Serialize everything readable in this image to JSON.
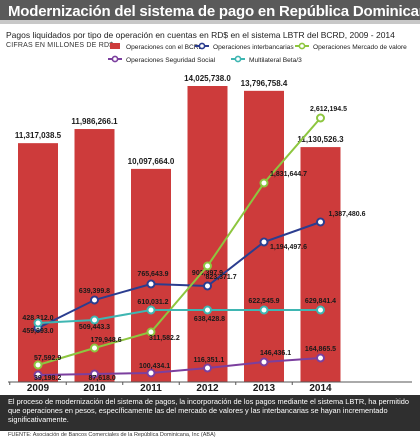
{
  "header": {
    "title": "Modernización del sistema de pago en República Dominicana",
    "subtitle": "Pagos liquidados por tipo de operación en cuentas en RD$ en el sistema LBTR del BCRD, 2009 - 2014",
    "units": "CIFRAS EN MILLONES DE RD$"
  },
  "note": "El proceso de modernización del sistema de pagos, la incorporación de los pagos mediante el sistema LBTR, ha permitido que operaciones en pesos, específicamente las del mercado de valores y las interbancarias se hayan incrementado significativamente.",
  "source": "FUENTE: Asociación de Bancos Comerciales de la República Dominicana, Inc (ABA)",
  "chart_data": {
    "type": "bar",
    "categories": [
      "2009",
      "2010",
      "2011",
      "2012",
      "2013",
      "2014"
    ],
    "ylim": [
      0,
      14500000
    ],
    "bar_series": {
      "name": "Operaciones con el BCRD",
      "values": [
        11317038.5,
        11986266.1,
        10097664.0,
        14025738.0,
        13796758.4,
        11130526.3
      ],
      "labels": [
        "11,317,038.5",
        "11,986,266.1",
        "10,097,664.0",
        "14,025,738.0",
        "13,796,758.4",
        "11,130,526.3"
      ],
      "color": "#cd3b3b"
    },
    "line_series": [
      {
        "name": "Operaciones interbancarias",
        "values": [
          428312.0,
          639399.8,
          765643.9,
          903397.9,
          1194497.6,
          1387480.6
        ],
        "labels": [
          "428,312.0",
          "639,399.8",
          "765,643.9",
          "903,397.9",
          "1,194,497.6",
          "1,387,480.6"
        ],
        "color": "#2b3d8f"
      },
      {
        "name": "Operaciones Mercado de valore",
        "values": [
          57592.9,
          179948.6,
          311582.2,
          823371.7,
          1831644.7,
          2612194.5
        ],
        "labels": [
          "57,592.9",
          "179,948.6",
          "311,582.2",
          "823,371.7",
          "1,831,644.7",
          "2,612,194.5"
        ],
        "color": "#8dc63f"
      },
      {
        "name": "Operaciones Seguridad Social",
        "values": [
          39198.2,
          87618.0,
          100434.1,
          116351.1,
          146436.1,
          164865.5
        ],
        "labels": [
          "39,198.2",
          "87,618.0",
          "100,434.1",
          "116,351.1",
          "146,436.1",
          "164,865.5"
        ],
        "color": "#7b3f9e"
      },
      {
        "name": "Multilateral Beta/3",
        "values": [
          459893.0,
          509443.3,
          610031.2,
          638428.8,
          622545.9,
          629841.4
        ],
        "labels": [
          "459,893.0",
          "509,443.3",
          "610,031.2",
          "638,428.8",
          "622,545.9",
          "629,841.4"
        ],
        "color": "#3fb6b2"
      }
    ],
    "legend": "top"
  }
}
